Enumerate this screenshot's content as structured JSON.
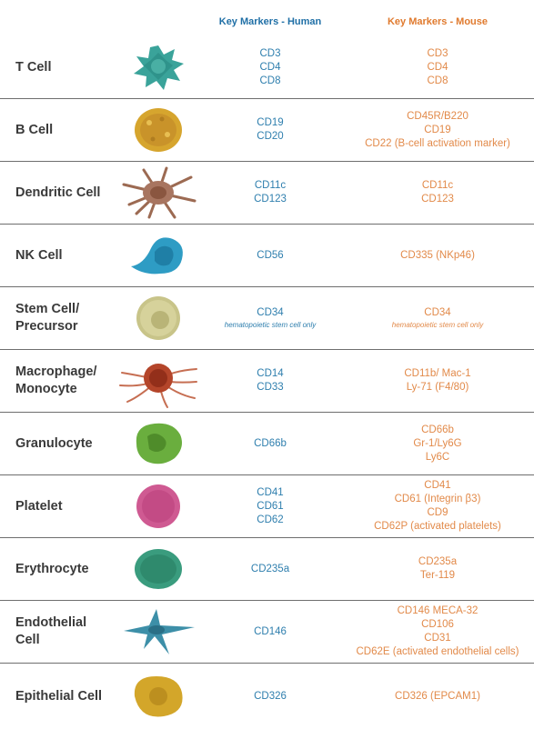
{
  "headers": {
    "human": "Key Markers - Human",
    "mouse": "Key Markers - Mouse"
  },
  "colors": {
    "human_text": "#2f7fae",
    "mouse_text": "#e28a4a",
    "row_label": "#3a3a3a",
    "divider": "#6e6e6e"
  },
  "rows": [
    {
      "name": [
        "T Cell"
      ],
      "icon": "t-cell-icon",
      "human": [
        "CD3",
        "CD4",
        "CD8"
      ],
      "mouse": [
        "CD3",
        "CD4",
        "CD8"
      ]
    },
    {
      "name": [
        "B Cell"
      ],
      "icon": "b-cell-icon",
      "human": [
        "CD19",
        "CD20"
      ],
      "mouse": [
        "CD45R/B220",
        "CD19",
        "CD22 (B-cell activation marker)"
      ]
    },
    {
      "name": [
        "Dendritic Cell"
      ],
      "icon": "dendritic-cell-icon",
      "human": [
        "CD11c",
        "CD123"
      ],
      "mouse": [
        "CD11c",
        "CD123"
      ]
    },
    {
      "name": [
        "NK Cell"
      ],
      "icon": "nk-cell-icon",
      "human": [
        "CD56"
      ],
      "mouse": [
        "CD335 (NKp46)"
      ]
    },
    {
      "name": [
        "Stem Cell/",
        "Precursor"
      ],
      "icon": "stem-cell-icon",
      "human": [
        "CD34"
      ],
      "human_note": "hematopoietic stem cell only",
      "mouse": [
        "CD34"
      ],
      "mouse_note": "hematopoietic stem cell only"
    },
    {
      "name": [
        "Macrophage/",
        "Monocyte"
      ],
      "icon": "macrophage-icon",
      "human": [
        "CD14",
        "CD33"
      ],
      "mouse": [
        "CD11b/ Mac-1",
        "Ly-71 (F4/80)"
      ]
    },
    {
      "name": [
        "Granulocyte"
      ],
      "icon": "granulocyte-icon",
      "human": [
        "CD66b"
      ],
      "mouse": [
        "CD66b",
        "Gr-1/Ly6G",
        "Ly6C"
      ]
    },
    {
      "name": [
        "Platelet"
      ],
      "icon": "platelet-icon",
      "human": [
        "CD41",
        "CD61",
        "CD62"
      ],
      "mouse": [
        "CD41",
        "CD61 (Integrin β3)",
        "CD9",
        "CD62P (activated platelets)"
      ]
    },
    {
      "name": [
        "Erythrocyte"
      ],
      "icon": "erythrocyte-icon",
      "human": [
        "CD235a"
      ],
      "mouse": [
        "CD235a",
        "Ter-119"
      ]
    },
    {
      "name": [
        "Endothelial",
        "Cell"
      ],
      "icon": "endothelial-cell-icon",
      "human": [
        "CD146"
      ],
      "mouse": [
        "CD146 MECA-32",
        "CD106",
        "CD31",
        "CD62E (activated endothelial cells)"
      ]
    },
    {
      "name": [
        "Epithelial Cell"
      ],
      "icon": "epithelial-cell-icon",
      "human": [
        "CD326"
      ],
      "mouse": [
        "CD326 (EPCAM1)"
      ]
    }
  ]
}
